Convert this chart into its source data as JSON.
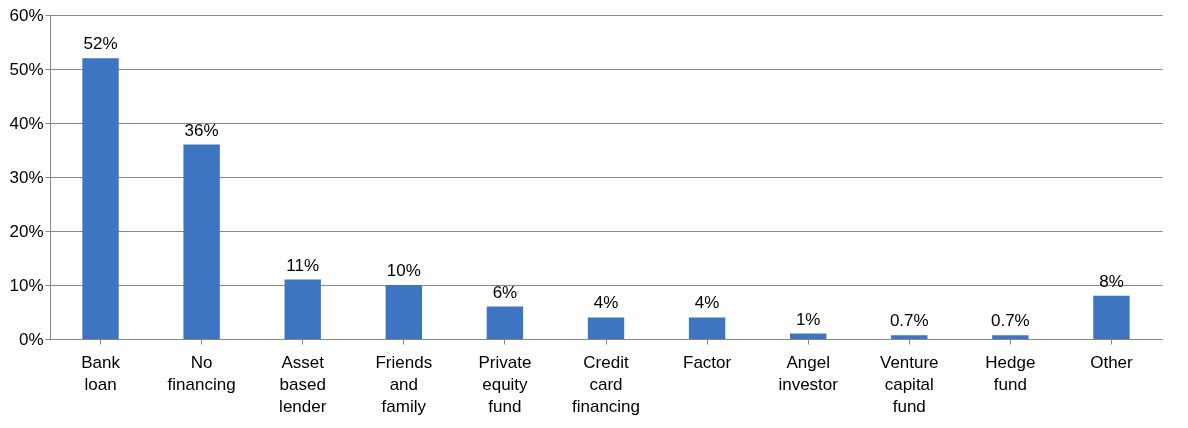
{
  "chart_data": {
    "type": "bar",
    "categories": [
      "Bank loan",
      "No financing",
      "Asset based lender",
      "Friends and family",
      "Private equity fund",
      "Credit card financing",
      "Factor",
      "Angel investor",
      "Venture capital fund",
      "Hedge fund",
      "Other"
    ],
    "values": [
      52,
      36,
      11,
      10,
      6,
      4,
      4,
      1,
      0.7,
      0.7,
      8
    ],
    "value_labels": [
      "52%",
      "36%",
      "11%",
      "10%",
      "6%",
      "4%",
      "4%",
      "1%",
      "0.7%",
      "0.7%",
      "8%"
    ],
    "color": "#3d75c2",
    "ylim": [
      0,
      60
    ],
    "yticks": [
      {
        "value": 0,
        "label": "0%"
      },
      {
        "value": 10,
        "label": "10%"
      },
      {
        "value": 20,
        "label": "20%"
      },
      {
        "value": 30,
        "label": "30%"
      },
      {
        "value": 40,
        "label": "40%"
      },
      {
        "value": 50,
        "label": "50%"
      },
      {
        "value": 60,
        "label": "60%"
      }
    ],
    "grid": "y"
  }
}
